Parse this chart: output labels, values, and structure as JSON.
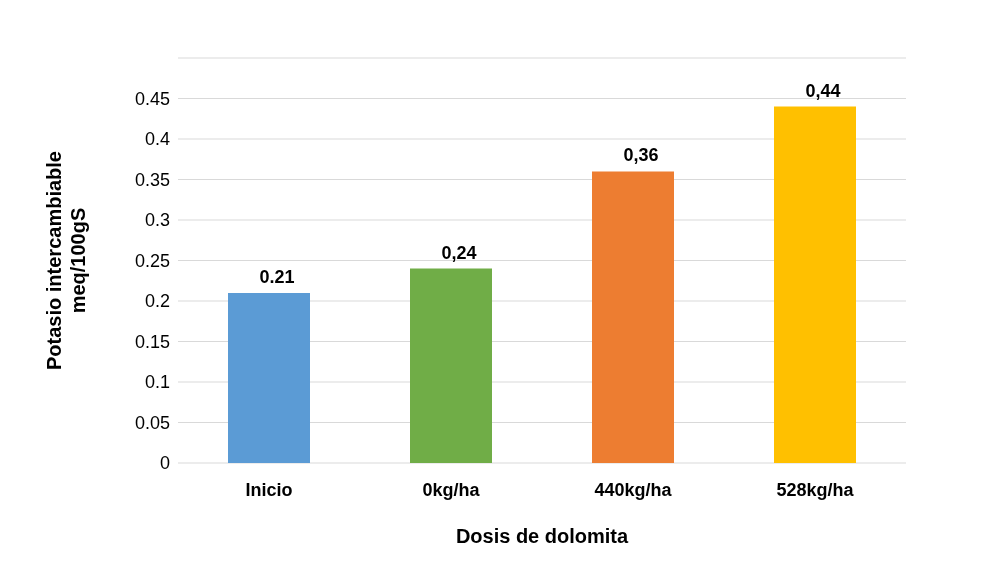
{
  "chart_data": {
    "type": "bar",
    "xlabel": "Dosis de dolomita",
    "ylabel": "Potasio intercambiable\nmeq/100gS",
    "categories": [
      "Inicio",
      "0kg/ha",
      "440kg/ha",
      "528kg/ha"
    ],
    "values": [
      0.21,
      0.24,
      0.36,
      0.44
    ],
    "colors": [
      "#5b9bd5",
      "#70ad47",
      "#ed7d31",
      "#ffc000"
    ],
    "value_labels": [
      "0.21",
      "0,24",
      "0,36",
      "0,44"
    ],
    "ylim": [
      0,
      0.5
    ],
    "yticks": [
      0,
      0.05,
      0.1,
      0.15,
      0.2,
      0.25,
      0.3,
      0.35,
      0.4,
      0.45,
      {
        "value": 0.5,
        "label": null
      }
    ],
    "grid": "y"
  }
}
